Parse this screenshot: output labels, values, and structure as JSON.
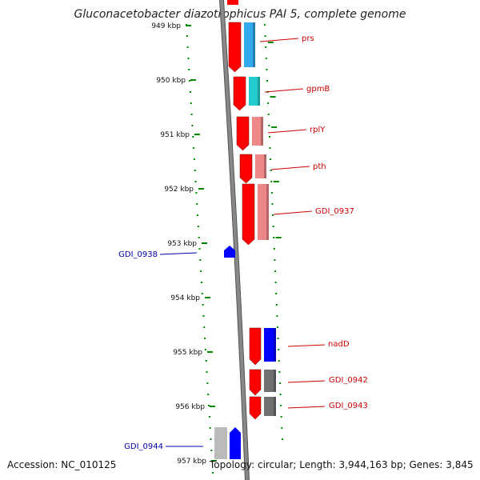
{
  "title": "Gluconacetobacter diazotrophicus PAI 5, complete genome",
  "footer": {
    "accession": "Accession: NC_010125",
    "topology": "Topology: circular; Length: 3,944,163 bp; Genes: 3,845"
  },
  "colors": {
    "forward_cds": "#ff0000",
    "reverse_cds": "#0000ff",
    "forward_label": "#cc0000",
    "reverse_label": "#0000aa",
    "tick": "#008800",
    "backbone": "#888888",
    "cog_blue": "#33aaee",
    "cog_teal": "#22cccc",
    "cog_pink": "#ee8888",
    "cog_gray": "#707070",
    "cog_light_gray": "#bbbbbb"
  },
  "scale_labels": [
    "949 kbp",
    "950 kbp",
    "951 kbp",
    "952 kbp",
    "953 kbp",
    "954 kbp",
    "955 kbp",
    "956 kbp",
    "957 kbp"
  ],
  "genes": [
    {
      "name": "prs",
      "strand": "forward",
      "category_color": "#33aaee"
    },
    {
      "name": "gpmB",
      "strand": "forward",
      "category_color": "#22cccc"
    },
    {
      "name": "rplY",
      "strand": "forward",
      "category_color": "#ee8888"
    },
    {
      "name": "pth",
      "strand": "forward",
      "category_color": "#ee8888"
    },
    {
      "name": "GDI_0937",
      "strand": "forward",
      "category_color": "#ee8888"
    },
    {
      "name": "GDI_0938",
      "strand": "reverse",
      "category_color": ""
    },
    {
      "name": "nadD",
      "strand": "forward",
      "category_color": "#0000ff"
    },
    {
      "name": "GDI_0942",
      "strand": "forward",
      "category_color": "#707070"
    },
    {
      "name": "GDI_0943",
      "strand": "forward",
      "category_color": "#707070"
    },
    {
      "name": "GDI_0944",
      "strand": "reverse",
      "category_color": "#bbbbbb"
    }
  ]
}
